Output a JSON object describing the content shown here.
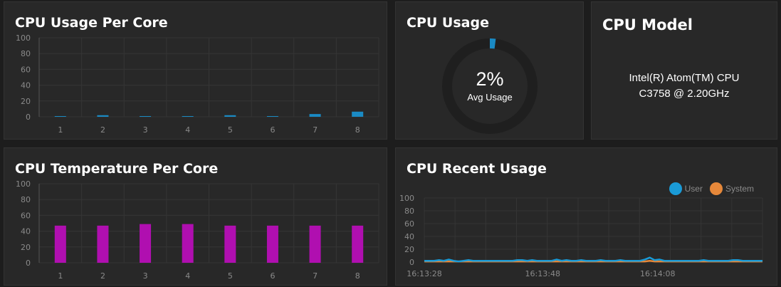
{
  "colors": {
    "background": "#1d1d1d",
    "card": "#282828",
    "usage_bar": "#1a8ac4",
    "temp_bar": "#b00fb0",
    "user": "#1a9bd7",
    "system": "#e6883a",
    "gauge_track": "#1f1f1f"
  },
  "panels": {
    "per_core_usage": {
      "title": "CPU Usage Per Core"
    },
    "cpu_usage": {
      "title": "CPU Usage",
      "value": "2%",
      "label": "Avg Usage",
      "percent": 2
    },
    "cpu_model": {
      "title": "CPU Model",
      "line1": "Intel(R) Atom(TM) CPU",
      "line2": "C3758 @ 2.20GHz"
    },
    "temperature": {
      "title": "CPU Temperature Per Core"
    },
    "recent_usage": {
      "title": "CPU Recent Usage",
      "legend": {
        "user": "User",
        "system": "System"
      }
    }
  },
  "chart_data": [
    {
      "type": "bar",
      "id": "per_core_usage",
      "categories": [
        "1",
        "2",
        "3",
        "4",
        "5",
        "6",
        "7",
        "8"
      ],
      "values": [
        0.5,
        2,
        0.5,
        0.5,
        2,
        0.5,
        3.5,
        6.5
      ],
      "yticks": [
        "0",
        "20",
        "40",
        "60",
        "80",
        "100"
      ],
      "ylim": [
        0,
        100
      ]
    },
    {
      "type": "bar",
      "id": "temperature",
      "categories": [
        "1",
        "2",
        "3",
        "4",
        "5",
        "6",
        "7",
        "8"
      ],
      "values": [
        47,
        47,
        49,
        49,
        47,
        47,
        47,
        47
      ],
      "yticks": [
        "0",
        "20",
        "40",
        "60",
        "80",
        "100"
      ],
      "ylim": [
        0,
        100
      ]
    },
    {
      "type": "line",
      "id": "recent_usage",
      "xticks": [
        "16:13:28",
        "16:13:48",
        "16:14:08"
      ],
      "yticks": [
        "0",
        "20",
        "40",
        "60",
        "80",
        "100"
      ],
      "ylim": [
        0,
        100
      ],
      "series": [
        {
          "name": "User",
          "values": [
            2,
            2,
            2,
            3,
            2,
            4,
            2,
            1,
            2,
            3,
            2,
            2,
            2,
            2,
            2,
            2,
            2,
            2,
            2,
            3,
            3,
            2,
            3,
            2,
            2,
            2,
            2,
            4,
            2,
            3,
            2,
            2,
            3,
            2,
            2,
            2,
            3,
            2,
            2,
            2,
            3,
            2,
            2,
            2,
            2,
            4,
            7,
            3,
            4,
            2,
            2,
            2,
            2,
            2,
            2,
            2,
            2,
            3,
            2,
            2,
            2,
            2,
            2,
            3,
            3,
            2,
            2,
            2,
            2,
            2
          ]
        },
        {
          "name": "System",
          "values": [
            1,
            1,
            1,
            1,
            1,
            1,
            1,
            1,
            1,
            1,
            1,
            1,
            1,
            1,
            1,
            1,
            1,
            1,
            1,
            1,
            1,
            1,
            1,
            1,
            1,
            1,
            1,
            1,
            1,
            1,
            1,
            1,
            1,
            1,
            1,
            1,
            1,
            1,
            1,
            1,
            1,
            1,
            1,
            1,
            1,
            1,
            2,
            1,
            1,
            1,
            1,
            1,
            1,
            1,
            1,
            1,
            1,
            1,
            1,
            1,
            1,
            1,
            1,
            1,
            1,
            1,
            1,
            1,
            1,
            1
          ]
        }
      ]
    }
  ]
}
